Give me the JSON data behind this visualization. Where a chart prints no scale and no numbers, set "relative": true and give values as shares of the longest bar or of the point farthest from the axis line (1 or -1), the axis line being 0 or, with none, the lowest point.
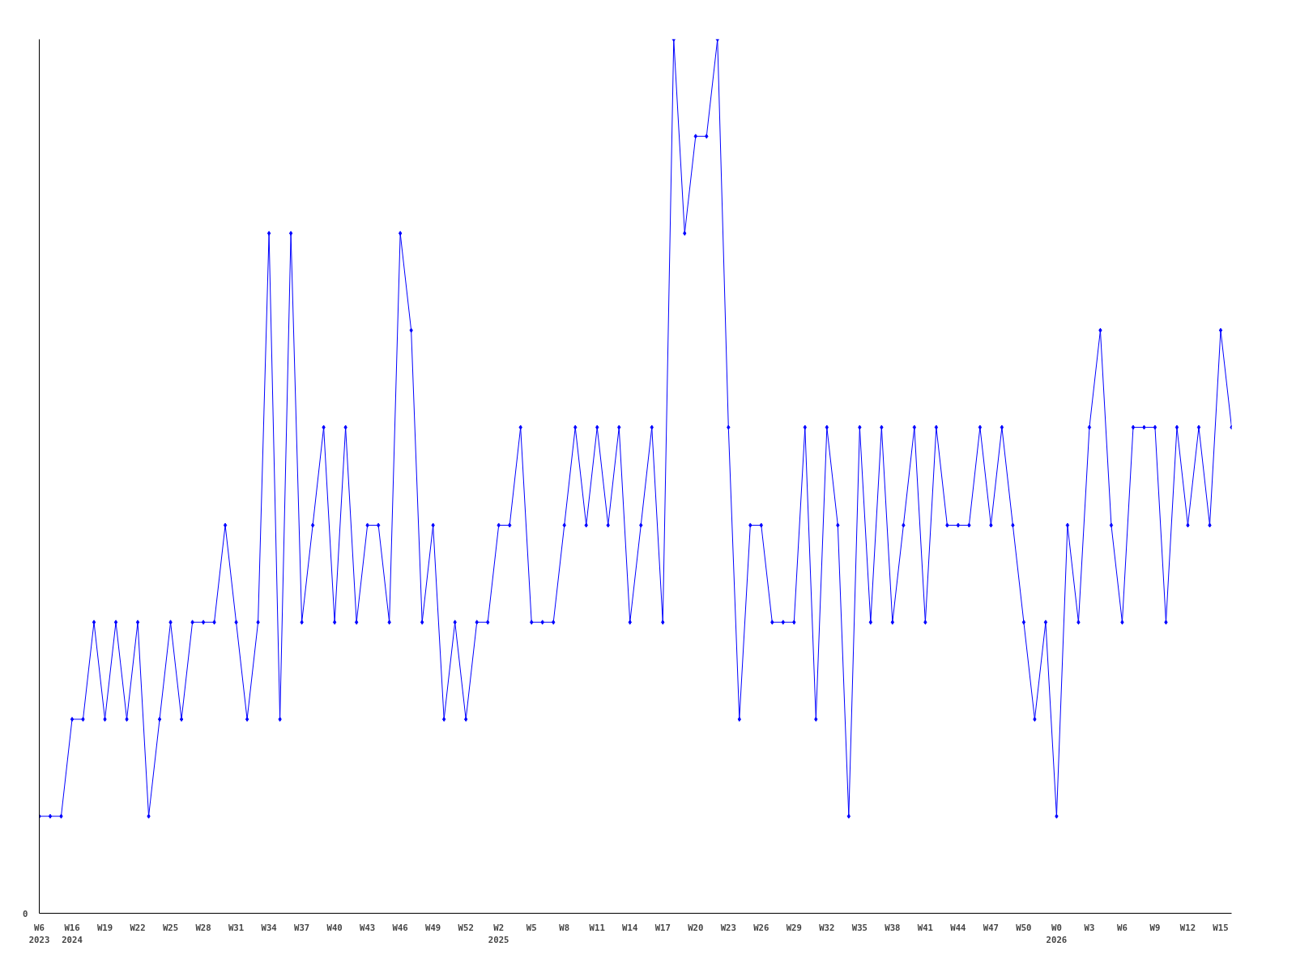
{
  "chart_data": {
    "type": "line",
    "relative": true,
    "categories": [
      "W6\n2023",
      null,
      null,
      "W16\n2024",
      null,
      null,
      "W19",
      null,
      null,
      "W22",
      null,
      null,
      "W25",
      null,
      null,
      "W28",
      null,
      null,
      "W31",
      null,
      null,
      "W34",
      null,
      null,
      "W37",
      null,
      null,
      "W40",
      null,
      null,
      "W43",
      null,
      null,
      "W46",
      null,
      null,
      "W49",
      null,
      null,
      "W52",
      null,
      null,
      "W2\n2025",
      null,
      null,
      "W5",
      null,
      null,
      "W8",
      null,
      null,
      "W11",
      null,
      null,
      "W14",
      null,
      null,
      "W17",
      null,
      null,
      "W20",
      null,
      null,
      "W23",
      null,
      null,
      "W26",
      null,
      null,
      "W29",
      null,
      null,
      "W32",
      null,
      null,
      "W35",
      null,
      null,
      "W38",
      null,
      null,
      "W41",
      null,
      null,
      "W44",
      null,
      null,
      "W47",
      null,
      null,
      "W50",
      null,
      null,
      "W0\n2026",
      null,
      null,
      "W3",
      null,
      null,
      "W6",
      null,
      null,
      "W9",
      null,
      null,
      "W12",
      null,
      null,
      "W15",
      null
    ],
    "series": [
      {
        "color": "#0000ff",
        "values": [
          0.111,
          0.111,
          0.111,
          0.222,
          0.222,
          0.333,
          0.222,
          0.333,
          0.222,
          0.333,
          0.111,
          0.222,
          0.333,
          0.222,
          0.333,
          0.333,
          0.333,
          0.444,
          0.333,
          0.222,
          0.333,
          0.778,
          0.222,
          0.778,
          0.333,
          0.444,
          0.556,
          0.333,
          0.556,
          0.333,
          0.444,
          0.444,
          0.333,
          0.778,
          0.667,
          0.333,
          0.444,
          0.222,
          0.333,
          0.222,
          0.333,
          0.333,
          0.444,
          0.444,
          0.556,
          0.333,
          0.333,
          0.333,
          0.444,
          0.556,
          0.444,
          0.556,
          0.444,
          0.556,
          0.333,
          0.444,
          0.556,
          0.333,
          1,
          0.778,
          0.889,
          0.889,
          1,
          0.556,
          0.222,
          0.444,
          0.444,
          0.333,
          0.333,
          0.333,
          0.556,
          0.222,
          0.556,
          0.444,
          0.111,
          0.556,
          0.333,
          0.556,
          0.333,
          0.444,
          0.556,
          0.333,
          0.556,
          0.444,
          0.444,
          0.444,
          0.556,
          0.444,
          0.556,
          0.444,
          0.333,
          0.222,
          0.333,
          0.111,
          0.444,
          0.333,
          0.556,
          0.667,
          0.444,
          0.333,
          0.556,
          0.556,
          0.556,
          0.333,
          0.556,
          0.444,
          0.556,
          0.444,
          0.667,
          0.556
        ]
      }
    ],
    "annotations": [
      "0"
    ],
    "marker": "diamond",
    "line_style": "solid",
    "grid": false
  }
}
